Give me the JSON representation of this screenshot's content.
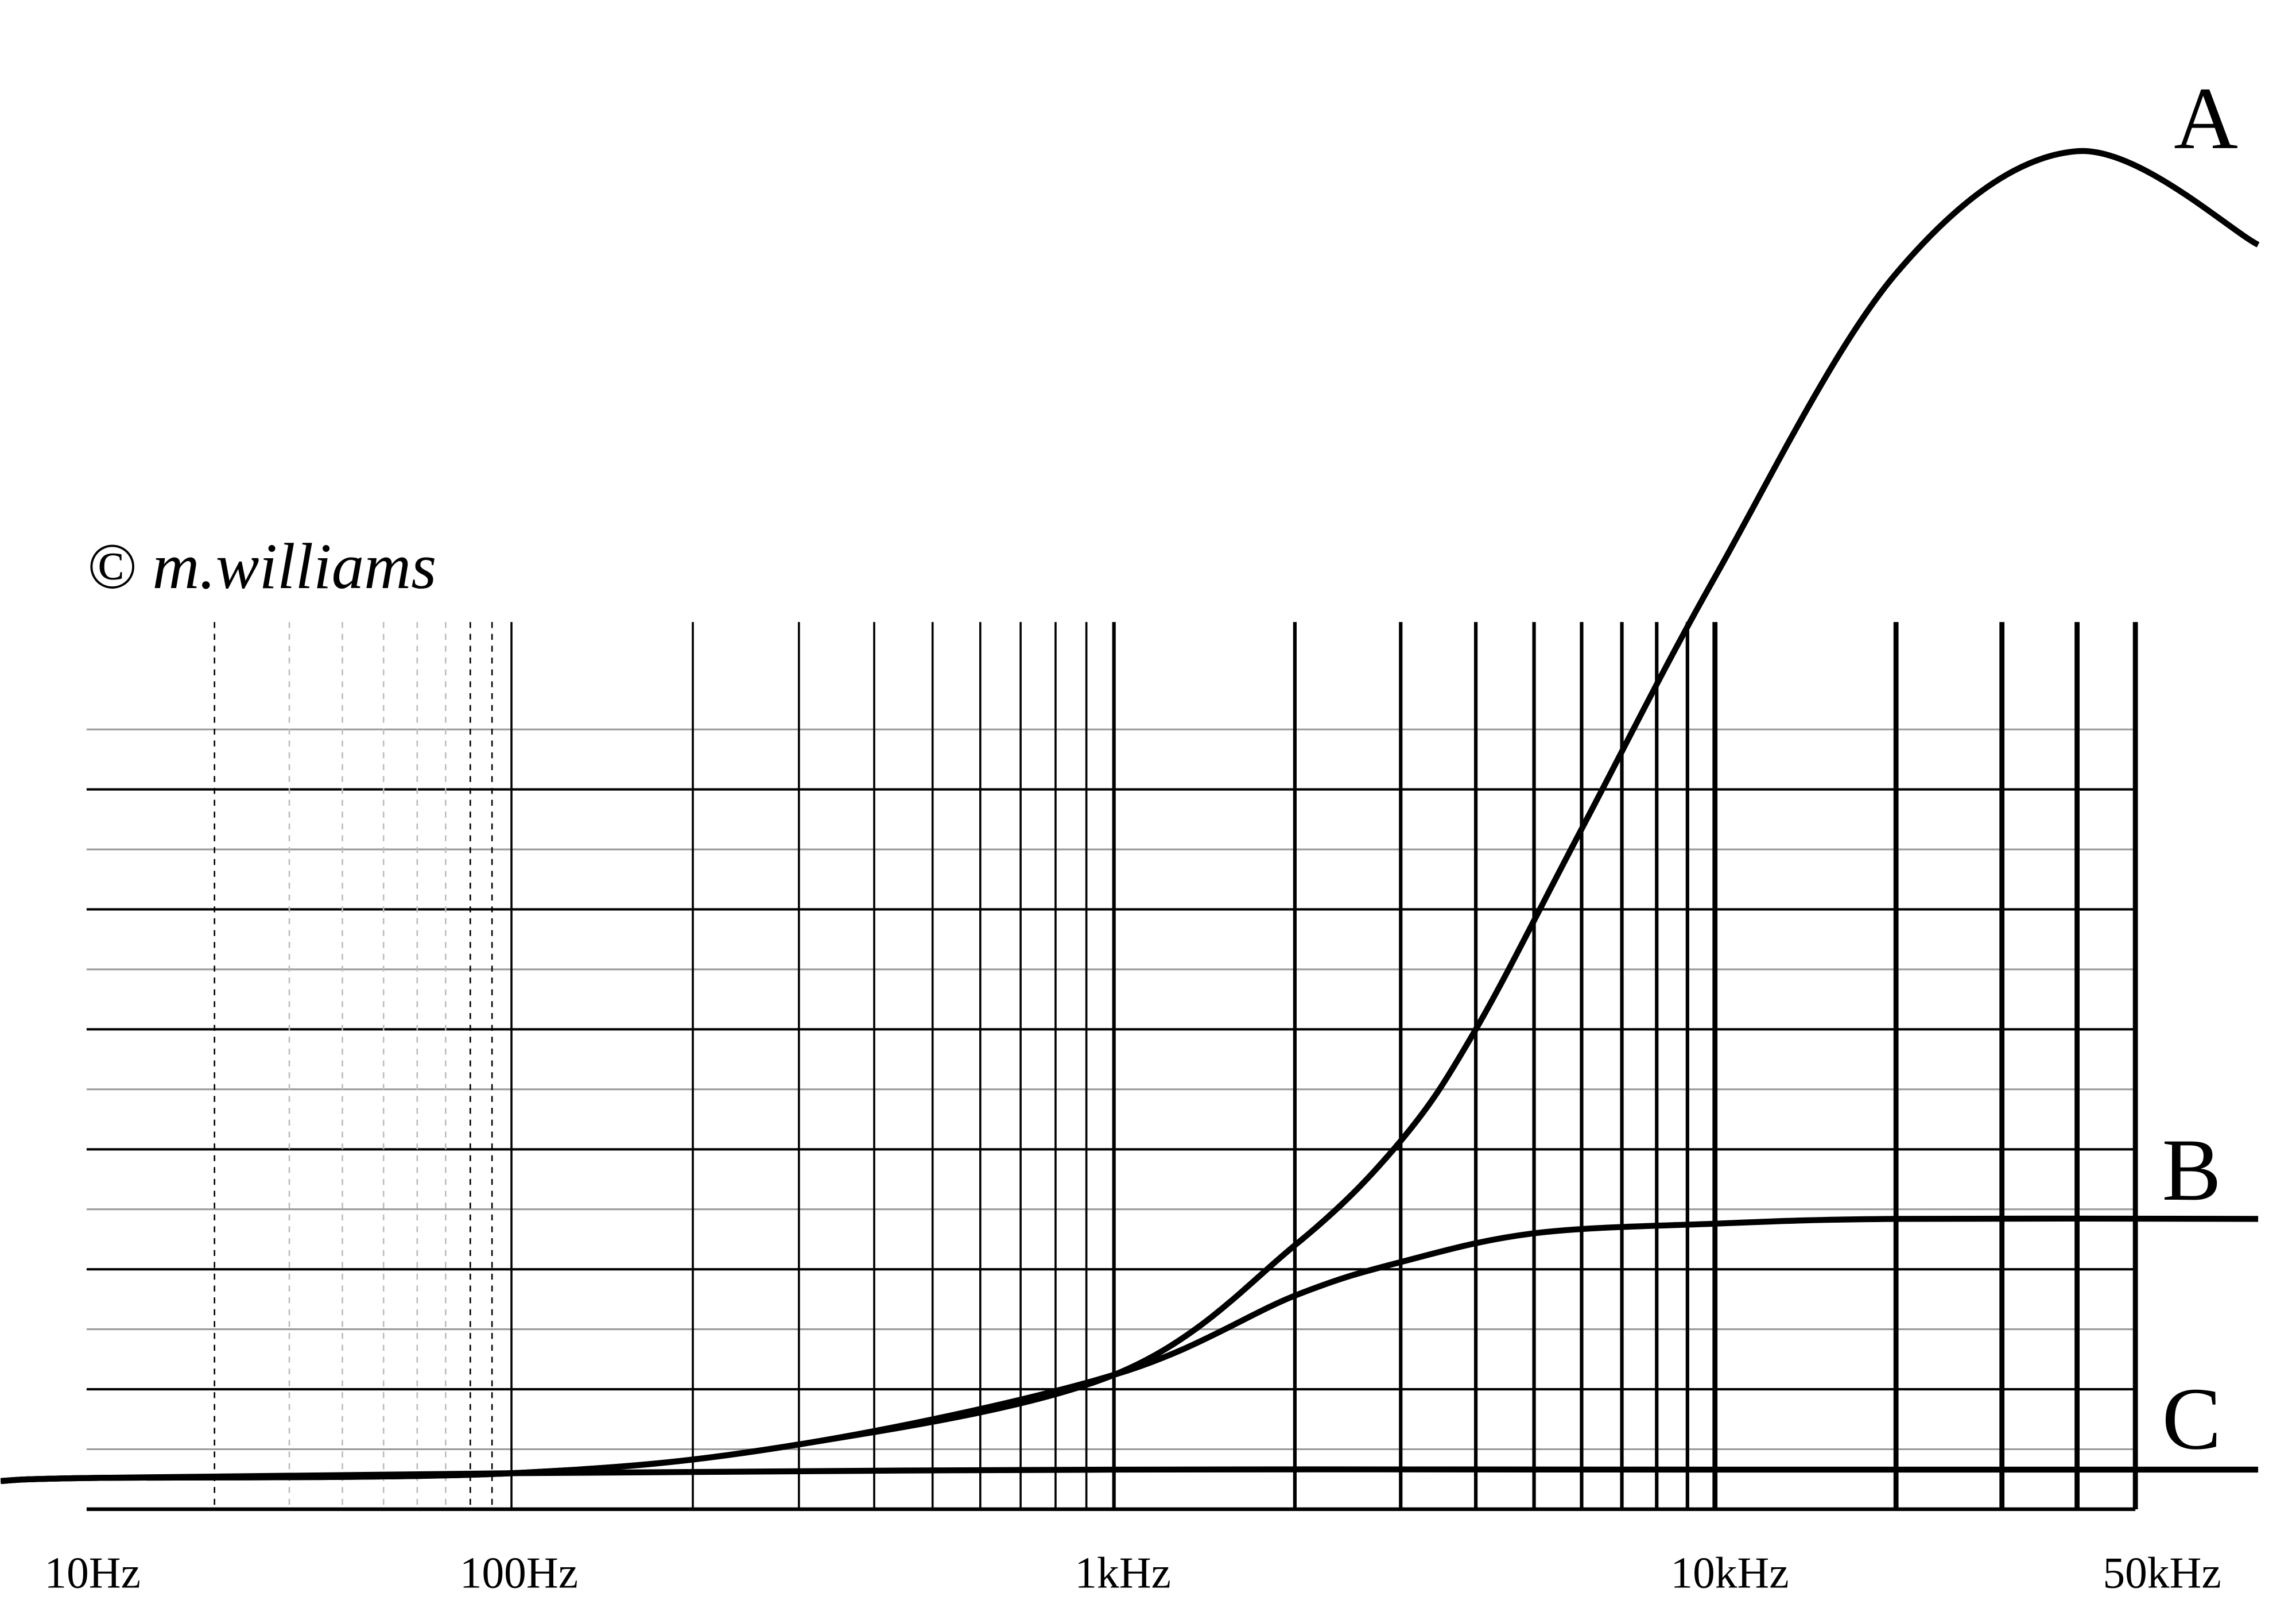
{
  "watermark": "© m.williams",
  "chart_data": {
    "type": "line",
    "title": "",
    "xlabel": "",
    "ylabel": "",
    "x_scale": "log",
    "x_ticks": [
      "10Hz",
      "100Hz",
      "1kHz",
      "10kHz",
      "50kHz"
    ],
    "x_tick_values": [
      10,
      100,
      1000,
      10000,
      50000
    ],
    "grid": true,
    "legend": "curve end labels (right)",
    "series": [
      {
        "name": "A",
        "x": [
          10,
          100,
          300,
          1000,
          2000,
          3000,
          4000,
          6000,
          10000,
          20000,
          40000,
          80000
        ],
        "y": [
          0.26,
          0.3,
          0.54,
          1.12,
          2.2,
          3.07,
          4.0,
          5.67,
          7.77,
          10.3,
          11.32,
          10.54
        ]
      },
      {
        "name": "B",
        "x": [
          10,
          100,
          300,
          1000,
          2000,
          3000,
          5000,
          10000,
          20000,
          80000
        ],
        "y": [
          0.26,
          0.3,
          0.54,
          1.12,
          1.78,
          2.06,
          2.3,
          2.38,
          2.42,
          2.42
        ]
      },
      {
        "name": "C",
        "x": [
          10,
          100,
          1000,
          10000,
          80000
        ],
        "y": [
          0.26,
          0.3,
          0.33,
          0.33,
          0.33
        ]
      }
    ],
    "color": "#000000"
  }
}
